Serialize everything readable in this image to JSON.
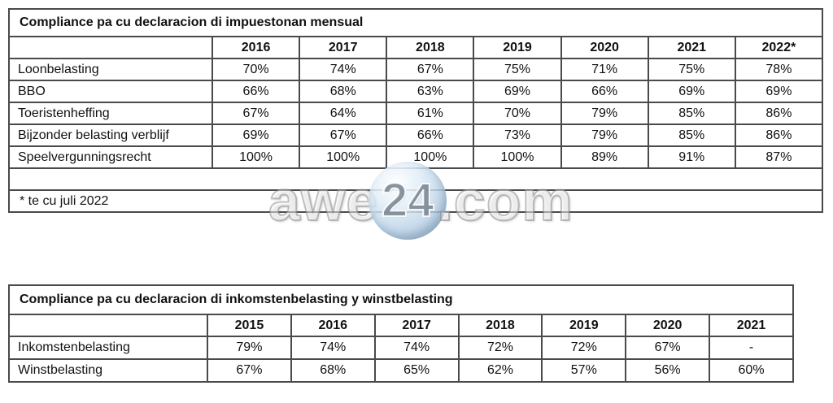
{
  "table1": {
    "title": "Compliance pa cu declaracion di impuestonan mensual",
    "columns": [
      "",
      "2016",
      "2017",
      "2018",
      "2019",
      "2020",
      "2021",
      "2022*"
    ],
    "rows": [
      {
        "label": "Loonbelasting",
        "values": [
          "70%",
          "74%",
          "67%",
          "75%",
          "71%",
          "75%",
          "78%"
        ]
      },
      {
        "label": "BBO",
        "values": [
          "66%",
          "68%",
          "63%",
          "69%",
          "66%",
          "69%",
          "69%"
        ]
      },
      {
        "label": "Toeristenheffing",
        "values": [
          "67%",
          "64%",
          "61%",
          "70%",
          "79%",
          "85%",
          "86%"
        ]
      },
      {
        "label": "Bijzonder belasting verblijf",
        "values": [
          "69%",
          "67%",
          "66%",
          "73%",
          "79%",
          "85%",
          "86%"
        ]
      },
      {
        "label": "Speelvergunningsrecht",
        "values": [
          "100%",
          "100%",
          "100%",
          "100%",
          "89%",
          "91%",
          "87%"
        ]
      }
    ],
    "footnote": "* te cu juli 2022"
  },
  "table2": {
    "title": "Compliance pa cu declaracion di inkomstenbelasting y winstbelasting",
    "columns": [
      "",
      "2015",
      "2016",
      "2017",
      "2018",
      "2019",
      "2020",
      "2021"
    ],
    "rows": [
      {
        "label": "Inkomstenbelasting",
        "values": [
          "79%",
          "74%",
          "74%",
          "72%",
          "72%",
          "67%",
          "-"
        ]
      },
      {
        "label": "Winstbelasting",
        "values": [
          "67%",
          "68%",
          "65%",
          "62%",
          "57%",
          "56%",
          "60%"
        ]
      }
    ]
  },
  "watermark": {
    "left": "awe",
    "number": "24",
    "right": ".com",
    "sphere_color": "#b8d2e6",
    "text_outline_color": "#8c8c8c"
  },
  "colors": {
    "border": "#4a4a4a",
    "text": "#111111",
    "background": "#ffffff"
  }
}
